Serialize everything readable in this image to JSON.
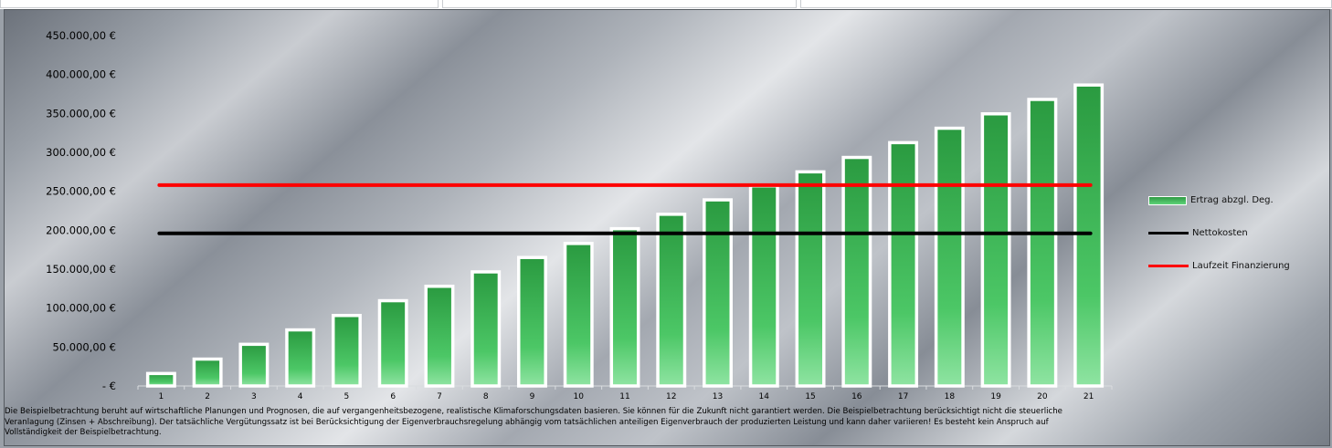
{
  "chart_data": {
    "type": "bar",
    "categories": [
      "1",
      "2",
      "3",
      "4",
      "5",
      "6",
      "7",
      "8",
      "9",
      "10",
      "11",
      "12",
      "13",
      "14",
      "15",
      "16",
      "17",
      "18",
      "19",
      "20",
      "21"
    ],
    "series": [
      {
        "name": "Ertrag abzgl. Deg.",
        "type": "bar",
        "color": "#3cb857",
        "values": [
          16000,
          34500,
          53500,
          72000,
          90500,
          109500,
          128000,
          146500,
          165000,
          183000,
          202000,
          220500,
          239000,
          257000,
          275000,
          293500,
          312500,
          331000,
          349500,
          368000,
          386500
        ]
      },
      {
        "name": "Nettokosten",
        "type": "line",
        "color": "#000000",
        "values": [
          196000,
          196000,
          196000,
          196000,
          196000,
          196000,
          196000,
          196000,
          196000,
          196000,
          196000,
          196000,
          196000,
          196000,
          196000,
          196000,
          196000,
          196000,
          196000,
          196000,
          196000
        ]
      },
      {
        "name": "Laufzeit Finanzierung",
        "type": "line",
        "color": "#ff0000",
        "values": [
          258000,
          258000,
          258000,
          258000,
          258000,
          258000,
          258000,
          258000,
          258000,
          258000,
          258000,
          258000,
          258000,
          258000,
          258000,
          258000,
          258000,
          258000,
          258000,
          258000,
          258000
        ]
      }
    ],
    "y_ticks": [
      {
        "value": 0,
        "label": "-  €"
      },
      {
        "value": 50000,
        "label": "50.000,00 €"
      },
      {
        "value": 100000,
        "label": "100.000,00 €"
      },
      {
        "value": 150000,
        "label": "150.000,00 €"
      },
      {
        "value": 200000,
        "label": "200.000,00 €"
      },
      {
        "value": 250000,
        "label": "250.000,00 €"
      },
      {
        "value": 300000,
        "label": "300.000,00 €"
      },
      {
        "value": 350000,
        "label": "350.000,00 €"
      },
      {
        "value": 400000,
        "label": "400.000,00 €"
      },
      {
        "value": 450000,
        "label": "450.000,00 €"
      }
    ],
    "ylim": [
      0,
      450000
    ],
    "xlabel": "",
    "ylabel": "",
    "grid": false,
    "legend_position": "right"
  },
  "legend": {
    "items": [
      {
        "label": "Ertrag abzgl. Deg.",
        "kind": "bar",
        "color": "#3cb857"
      },
      {
        "label": "Nettokosten",
        "kind": "line",
        "color": "#000000"
      },
      {
        "label": "Laufzeit Finanzierung",
        "kind": "line",
        "color": "#ff0000"
      }
    ]
  },
  "footnote": {
    "line1": "Die Beispielbetrachtung beruht auf wirtschaftliche Planungen und Prognosen, die auf vergangenheitsbezogene, realistische Klimaforschungsdaten basieren. Sie können für die Zukunft nicht garantiert werden. Die Beispielbetrachtung berücksichtigt nicht die steuerliche",
    "line2": "Veranlagung (Zinsen + Abschreibung). Der tatsächliche Vergütungssatz ist bei Berücksichtigung der Eigenverbrauchsregelung abhängig vom tatsächlichen anteiligen Eigenverbrauch der produzierten Leistung und kann daher variieren!  Es besteht kein Anspruch auf",
    "line3": "Vollständigkeit der Beispielbetrachtung."
  }
}
